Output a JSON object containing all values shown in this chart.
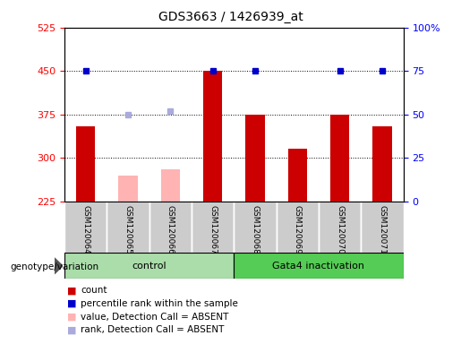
{
  "title": "GDS3663 / 1426939_at",
  "samples": [
    "GSM120064",
    "GSM120065",
    "GSM120066",
    "GSM120067",
    "GSM120068",
    "GSM120069",
    "GSM120070",
    "GSM120071"
  ],
  "bar_values": [
    355,
    null,
    null,
    450,
    375,
    315,
    375,
    355
  ],
  "bar_absent_values": [
    null,
    270,
    280,
    null,
    null,
    null,
    null,
    null
  ],
  "percentile_values": [
    75,
    null,
    null,
    75,
    75,
    null,
    75,
    75
  ],
  "percentile_absent_values": [
    null,
    50,
    52,
    null,
    null,
    null,
    null,
    null
  ],
  "groups": [
    {
      "label": "control",
      "start": 0,
      "end": 3
    },
    {
      "label": "Gata4 inactivation",
      "start": 4,
      "end": 7
    }
  ],
  "ymin": 225,
  "ymax": 525,
  "yticks": [
    225,
    300,
    375,
    450,
    525
  ],
  "y2min": 0,
  "y2max": 100,
  "y2ticks": [
    0,
    25,
    50,
    75,
    100
  ],
  "y2ticklabels": [
    "0",
    "25",
    "50",
    "75",
    "100%"
  ],
  "bar_color": "#cc0000",
  "bar_absent_color": "#ffb3b3",
  "percentile_color": "#0000cc",
  "percentile_absent_color": "#aaaadd",
  "bg_control": "#aaddaa",
  "bg_gata4": "#55cc55",
  "legend_items": [
    {
      "color": "#cc0000",
      "label": "count"
    },
    {
      "color": "#0000cc",
      "label": "percentile rank within the sample"
    },
    {
      "color": "#ffb3b3",
      "label": "value, Detection Call = ABSENT"
    },
    {
      "color": "#aaaadd",
      "label": "rank, Detection Call = ABSENT"
    }
  ]
}
